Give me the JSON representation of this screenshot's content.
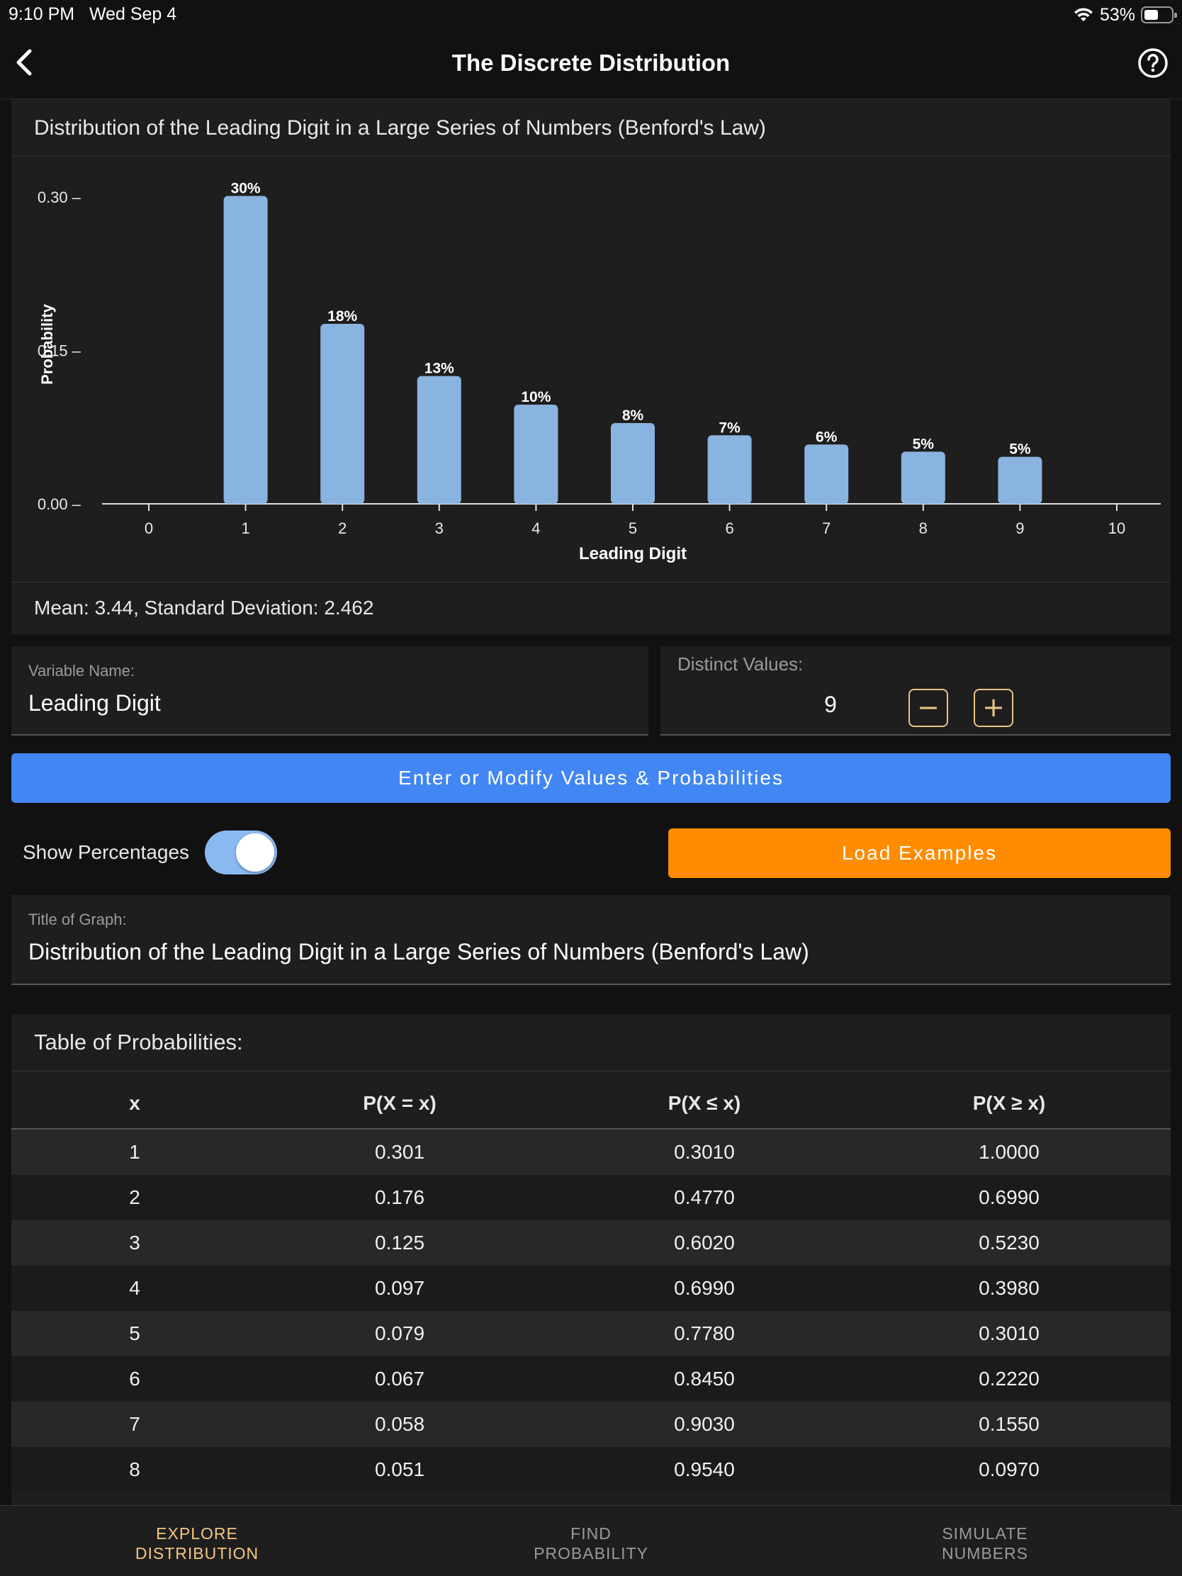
{
  "status_bar": {
    "time": "9:10 PM",
    "date": "Wed Sep 4",
    "battery": "53%",
    "battery_fraction": 0.53
  },
  "nav": {
    "title": "The Discrete Distribution",
    "back_icon": "chevron-left-icon",
    "help_icon": "help-circle-icon"
  },
  "chart_data": {
    "type": "bar",
    "title": "Distribution of the Leading Digit in a Large Series of Numbers (Benford's Law)",
    "xlabel": "Leading Digit",
    "ylabel": "Probability",
    "x": [
      1,
      2,
      3,
      4,
      5,
      6,
      7,
      8,
      9
    ],
    "values": [
      0.301,
      0.176,
      0.125,
      0.097,
      0.079,
      0.067,
      0.058,
      0.051,
      0.046
    ],
    "data_labels": [
      "30%",
      "18%",
      "13%",
      "10%",
      "8%",
      "7%",
      "6%",
      "5%",
      "5%"
    ],
    "x_ticks": [
      "0",
      "1",
      "2",
      "3",
      "4",
      "5",
      "6",
      "7",
      "8",
      "9",
      "10"
    ],
    "y_ticks": [
      "0.00",
      "0.15",
      "0.30"
    ],
    "xlim": [
      0,
      10
    ],
    "ylim": [
      0,
      0.3
    ],
    "bar_color": "#8ab4e0",
    "grid": false
  },
  "chart_stats": "Mean: 3.44, Standard Deviation: 2.462",
  "variable": {
    "label": "Variable Name:",
    "value": "Leading Digit"
  },
  "distinct": {
    "label": "Distinct Values:",
    "count": "9",
    "minus": "−",
    "plus": "+"
  },
  "modify_button": "Enter or Modify Values & Probabilities",
  "show_percentages": {
    "label": "Show Percentages",
    "on": true
  },
  "load_examples_button": "Load Examples",
  "graph_title": {
    "label": "Title of Graph:",
    "value": "Distribution of the Leading Digit in a Large Series of Numbers (Benford's Law)"
  },
  "table": {
    "title": "Table of Probabilities:",
    "headers": [
      "x",
      "P(X = x)",
      "P(X ≤ x)",
      "P(X ≥ x)"
    ],
    "rows": [
      [
        "1",
        "0.301",
        "0.3010",
        "1.0000"
      ],
      [
        "2",
        "0.176",
        "0.4770",
        "0.6990"
      ],
      [
        "3",
        "0.125",
        "0.6020",
        "0.5230"
      ],
      [
        "4",
        "0.097",
        "0.6990",
        "0.3980"
      ],
      [
        "5",
        "0.079",
        "0.7780",
        "0.3010"
      ],
      [
        "6",
        "0.067",
        "0.8450",
        "0.2220"
      ],
      [
        "7",
        "0.058",
        "0.9030",
        "0.1550"
      ],
      [
        "8",
        "0.051",
        "0.9540",
        "0.0970"
      ]
    ]
  },
  "tabs": [
    {
      "line1": "EXPLORE",
      "line2": "DISTRIBUTION",
      "active": true
    },
    {
      "line1": "FIND",
      "line2": "PROBABILITY",
      "active": false
    },
    {
      "line1": "SIMULATE",
      "line2": "NUMBERS",
      "active": false
    }
  ],
  "colors": {
    "accent_blue": "#4286f4",
    "accent_orange": "#ff8c00",
    "tab_active": "#f5c684",
    "stepper": "#e8c486"
  }
}
